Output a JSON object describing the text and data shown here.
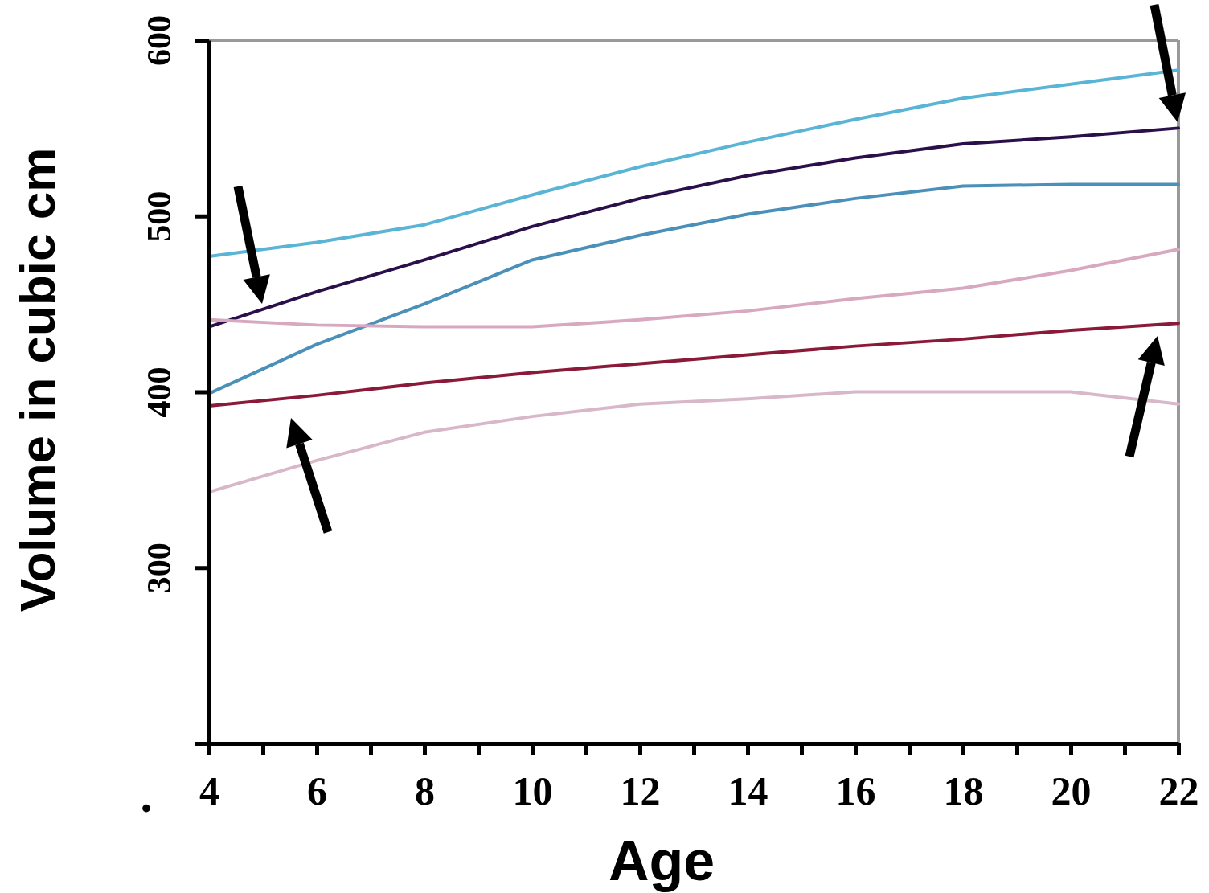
{
  "chart_data": {
    "type": "line",
    "xlabel": "Age",
    "ylabel": "Volume in cubic cm",
    "x": [
      4,
      6,
      8,
      10,
      12,
      14,
      16,
      18,
      20,
      22
    ],
    "xlim": [
      4,
      22
    ],
    "xticks": [
      4,
      {
        "value": 5,
        "label": null
      },
      6,
      {
        "value": 7,
        "label": null
      },
      8,
      {
        "value": 9,
        "label": null
      },
      10,
      {
        "value": 11,
        "label": null
      },
      12,
      {
        "value": 13,
        "label": null
      },
      14,
      {
        "value": 15,
        "label": null
      },
      16,
      {
        "value": 17,
        "label": null
      },
      18,
      {
        "value": 19,
        "label": null
      },
      20,
      {
        "value": 21,
        "label": null
      },
      22
    ],
    "ylim": [
      200,
      600
    ],
    "yticks": [
      {
        "value": 200,
        "label": null
      },
      300,
      400,
      500,
      600
    ],
    "grid": false,
    "marker": "none",
    "line_style": "solid",
    "annotations": [
      "."
    ],
    "series": [
      {
        "color": "#5ab4d6",
        "values": [
          477,
          485,
          495,
          512,
          528,
          542,
          555,
          567,
          575,
          583
        ]
      },
      {
        "color": "#2a0f4a",
        "values": [
          437,
          457,
          475,
          494,
          510,
          523,
          533,
          541,
          545,
          550
        ]
      },
      {
        "color": "#4a90b8",
        "values": [
          399,
          427,
          450,
          475,
          489,
          501,
          510,
          517,
          518,
          518
        ]
      },
      {
        "color": "#d8a8c0",
        "values": [
          441,
          438,
          437,
          437,
          441,
          446,
          453,
          459,
          469,
          481
        ]
      },
      {
        "color": "#8b1a3a",
        "values": [
          392,
          398,
          405,
          411,
          416,
          421,
          426,
          430,
          435,
          439
        ]
      },
      {
        "color": "#d8b8c8",
        "values": [
          343,
          361,
          377,
          386,
          393,
          396,
          400,
          400,
          400,
          393
        ]
      }
    ]
  }
}
